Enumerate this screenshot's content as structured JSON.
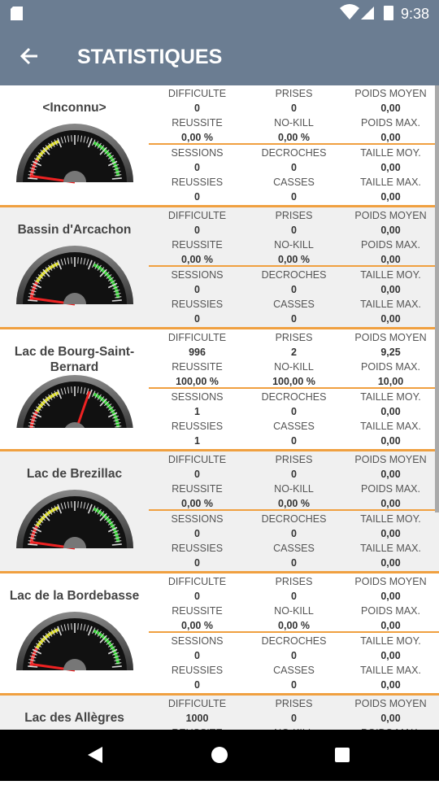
{
  "status_bar": {
    "time": "9:38"
  },
  "header": {
    "title": "STATISTIQUES"
  },
  "stat_labels": [
    [
      "DIFFICULTE",
      "PRISES",
      "POIDS MOYEN"
    ],
    [
      "REUSSITE",
      "NO-KILL",
      "POIDS MAX."
    ],
    [
      "SESSIONS",
      "DECROCHES",
      "TAILLE MOY."
    ],
    [
      "REUSSIES",
      "CASSES",
      "TAILLE MAX."
    ]
  ],
  "lakes": [
    {
      "name": "<Inconnu>",
      "values": [
        [
          "0",
          "0",
          "0,00"
        ],
        [
          "0,00 %",
          "0,00 %",
          "0,00"
        ],
        [
          "0",
          "0",
          "0,00"
        ],
        [
          "0",
          "0",
          "0,00"
        ]
      ]
    },
    {
      "name": "Bassin d'Arcachon",
      "values": [
        [
          "0",
          "0",
          "0,00"
        ],
        [
          "0,00 %",
          "0,00 %",
          "0,00"
        ],
        [
          "0",
          "0",
          "0,00"
        ],
        [
          "0",
          "0",
          "0,00"
        ]
      ]
    },
    {
      "name": "Lac de Bourg-Saint-Bernard",
      "values": [
        [
          "996",
          "2",
          "9,25"
        ],
        [
          "100,00 %",
          "100,00 %",
          "10,00"
        ],
        [
          "1",
          "0",
          "0,00"
        ],
        [
          "1",
          "0",
          "0,00"
        ]
      ]
    },
    {
      "name": "Lac de Brezillac",
      "values": [
        [
          "0",
          "0",
          "0,00"
        ],
        [
          "0,00 %",
          "0,00 %",
          "0,00"
        ],
        [
          "0",
          "0",
          "0,00"
        ],
        [
          "0",
          "0",
          "0,00"
        ]
      ]
    },
    {
      "name": "Lac de la Bordebasse",
      "values": [
        [
          "0",
          "0",
          "0,00"
        ],
        [
          "0,00 %",
          "0,00 %",
          "0,00"
        ],
        [
          "0",
          "0",
          "0,00"
        ],
        [
          "0",
          "0",
          "0,00"
        ]
      ]
    },
    {
      "name": "Lac des Allègres",
      "values": [
        [
          "1000",
          "0",
          "0,00"
        ]
      ]
    }
  ]
}
